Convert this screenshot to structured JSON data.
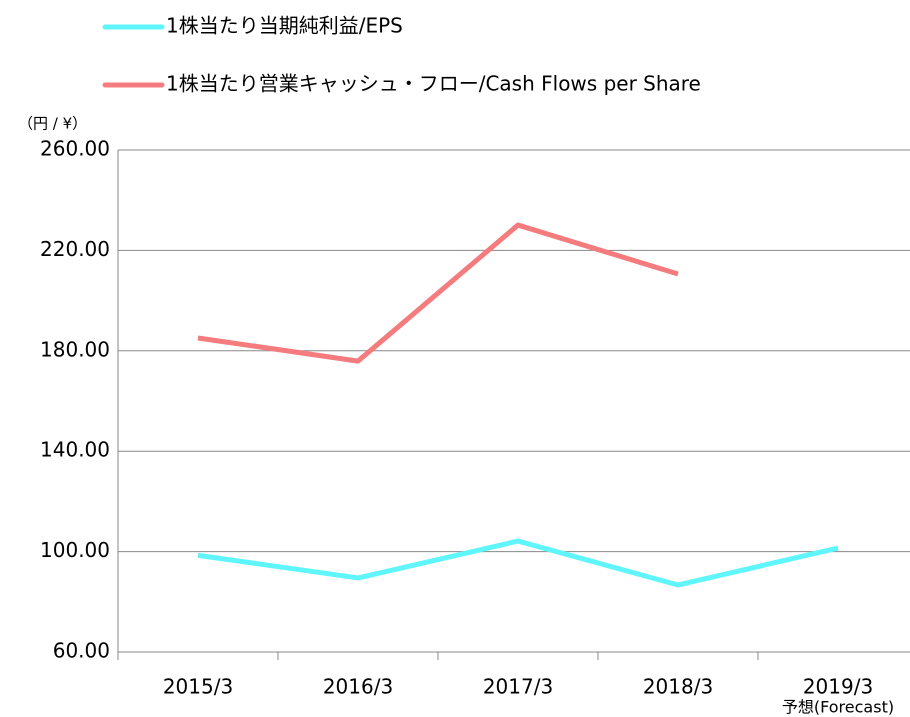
{
  "chart_data": {
    "type": "line",
    "y_unit_label": "（円 / ¥）",
    "categories": [
      "2015/3",
      "2016/3",
      "2017/3",
      "2018/3",
      "2019/3"
    ],
    "annotations": [
      {
        "category": 4,
        "text": "予想(Forecast)"
      }
    ],
    "series": [
      {
        "name": "1株当たり当期純利益/EPS",
        "color": "#5ef6fb",
        "values": [
          98.5,
          89.5,
          104.2,
          86.7,
          101.4
        ]
      },
      {
        "name": "1株当たり営業キャッシュ・フロー/Cash Flows per Share",
        "color": "#f47c7e",
        "values": [
          185.1,
          175.9,
          230.1,
          210.6,
          null
        ]
      }
    ],
    "ylim": [
      60,
      260
    ],
    "yticks": [
      {
        "value": 60,
        "label": "60.00"
      },
      {
        "value": 100,
        "label": "100.00"
      },
      {
        "value": 140,
        "label": "140.00"
      },
      {
        "value": 180,
        "label": "180.00"
      },
      {
        "value": 220,
        "label": "220.00"
      },
      {
        "value": 260,
        "label": "260.00"
      }
    ],
    "grid": true,
    "legend": "top"
  }
}
